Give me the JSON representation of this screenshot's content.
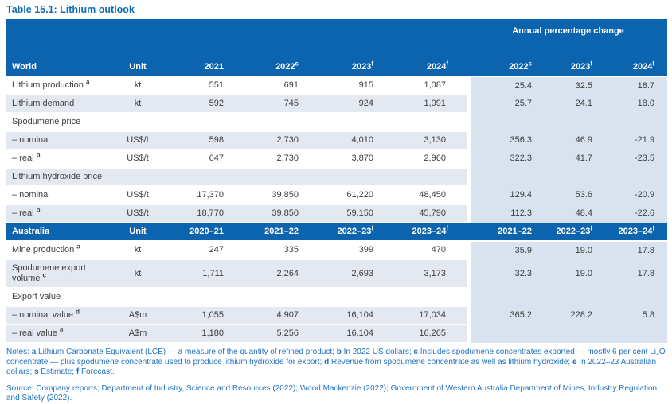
{
  "title": "Table 15.1: Lithium outlook",
  "colors": {
    "header_bg": "#0d64ae",
    "apc_block_bg": "#d9e3ef",
    "row_stripe_bg": "#e4e9f1",
    "title_color": "#0c6cb7",
    "notes_color": "#1f72c0",
    "body_text": "#3f3f3f"
  },
  "apc_label": "Annual percentage change",
  "sections": [
    {
      "name": "World",
      "unit_label": "Unit",
      "years": [
        "2021",
        "2022|s",
        "2023|f",
        "2024|f"
      ],
      "apc_years": [
        "2022|s",
        "2023|f",
        "2024|f"
      ],
      "rows": [
        {
          "type": "data",
          "shade": "white",
          "label": "Lithium production",
          "sup": "a",
          "unit": "kt",
          "values": [
            "551",
            "691",
            "915",
            "1,087"
          ],
          "apc": [
            "25.4",
            "32.5",
            "18.7"
          ]
        },
        {
          "type": "data",
          "shade": "stripe",
          "label": "Lithium demand",
          "sup": "",
          "unit": "kt",
          "values": [
            "592",
            "745",
            "924",
            "1,091"
          ],
          "apc": [
            "25.7",
            "24.1",
            "18.0"
          ]
        },
        {
          "type": "subheader",
          "shade": "white",
          "label": "Spodumene price"
        },
        {
          "type": "data",
          "shade": "stripe",
          "label": "– nominal",
          "sup": "",
          "unit": "US$/t",
          "values": [
            "598",
            "2,730",
            "4,010",
            "3,130"
          ],
          "apc": [
            "356.3",
            "46.9",
            "-21.9"
          ]
        },
        {
          "type": "data",
          "shade": "white",
          "label": "– real",
          "sup": "b",
          "unit": "US$/t",
          "values": [
            "647",
            "2,730",
            "3,870",
            "2,960"
          ],
          "apc": [
            "322.3",
            "41.7",
            "-23.5"
          ]
        },
        {
          "type": "subheader",
          "shade": "stripe",
          "label": "Lithium hydroxide price"
        },
        {
          "type": "data",
          "shade": "white",
          "label": "– nominal",
          "sup": "",
          "unit": "US$/t",
          "values": [
            "17,370",
            "39,850",
            "61,220",
            "48,450"
          ],
          "apc": [
            "129.4",
            "53.6",
            "-20.9"
          ]
        },
        {
          "type": "data",
          "shade": "stripe",
          "label": "– real",
          "sup": "b",
          "unit": "US$/t",
          "values": [
            "18,770",
            "39,850",
            "59,150",
            "45,790"
          ],
          "apc": [
            "112.3",
            "48.4",
            "-22.6"
          ]
        }
      ]
    },
    {
      "name": "Australia",
      "unit_label": "Unit",
      "years": [
        "2020–21",
        "2021–22",
        "2022–23|f",
        "2023–24|f"
      ],
      "apc_years": [
        "2021–22",
        "2022–23|f",
        "2023–24|f"
      ],
      "rows": [
        {
          "type": "data",
          "shade": "white",
          "label": "Mine production",
          "sup": "a",
          "unit": "kt",
          "values": [
            "247",
            "335",
            "399",
            "470"
          ],
          "apc": [
            "35.9",
            "19.0",
            "17.8"
          ]
        },
        {
          "type": "data",
          "shade": "stripe",
          "label": "Spodumene export volume",
          "sup": "c",
          "unit": "kt",
          "values": [
            "1,711",
            "2,264",
            "2,693",
            "3,173"
          ],
          "apc": [
            "32.3",
            "19.0",
            "17.8"
          ]
        },
        {
          "type": "subheader",
          "shade": "white",
          "label": "Export value"
        },
        {
          "type": "data",
          "shade": "stripe",
          "label": "– nominal value",
          "sup": "d",
          "unit": "A$m",
          "values": [
            "1,055",
            "4,907",
            "16,104",
            "17,034"
          ],
          "apc": [
            "365.2",
            "228.2",
            "5.8"
          ]
        },
        {
          "type": "data",
          "shade": "stripe",
          "label": "– real value",
          "sup": "e",
          "unit": "A$m",
          "values": [
            "1,180",
            "5,256",
            "16,104",
            "16,265"
          ],
          "apc": [
            "",
            "",
            ""
          ]
        }
      ]
    }
  ],
  "notes": {
    "prefix": "Notes: ",
    "segments": [
      {
        "marker": "a",
        "text": " Lithium Carbonate Equivalent (LCE) — a measure of the quantity of refined product; "
      },
      {
        "marker": "b",
        "text": " In 2022 US dollars; "
      },
      {
        "marker": "c",
        "text": " Includes spodumene concentrates exported — mostly 6 per cent Li₂O concentrate — plus spodumene concentrate used to produce lithium hydroxide for export; "
      },
      {
        "marker": "d",
        "text": " Revenue from spodumene concentrate as well as lithium hydroxide; "
      },
      {
        "marker": "e",
        "text": " In 2022–23 Australian dollars; "
      },
      {
        "marker": "s",
        "text": " Estimate; "
      },
      {
        "marker": "f",
        "text": " Forecast."
      }
    ]
  },
  "source": "Source: Company reports; Department of Industry, Science and Resources (2022); Wood Mackenzie (2022); Government of Western Australia Department of Mines, Industry Regulation and Safety (2022)."
}
